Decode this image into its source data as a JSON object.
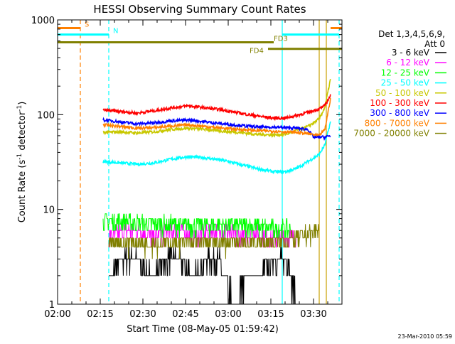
{
  "chart_data": {
    "type": "line",
    "title": "HESSI Observing Summary Count Rates",
    "xlabel": "Start Time (08-May-05 01:59:42)",
    "ylabel": "Count Rate (s",
    "ylabel_sup1": "-1",
    "ylabel_mid": " detector",
    "ylabel_sup2": "-1",
    "ylabel_end": ")",
    "yscale": "log",
    "ylim": [
      1,
      1000
    ],
    "xlim_min": [
      0,
      100
    ],
    "ytick_values": [
      1,
      10,
      100,
      1000
    ],
    "ytick_labels": [
      "1",
      "10",
      "100",
      "1000"
    ],
    "xtick_values": [
      0,
      15,
      30,
      45,
      60,
      75,
      90
    ],
    "xtick_labels": [
      "02:00",
      "02:15",
      "02:30",
      "02:45",
      "03:00",
      "03:15",
      "03:30"
    ],
    "timestamp": "23-Mar-2010 05:59",
    "legend_header": [
      "Det 1,3,4,5,6,9,",
      "Att 0"
    ],
    "legend_position": "right",
    "series": [
      {
        "name": "3 - 6 keV",
        "color": "#000000",
        "style": "noisy",
        "x": [
          18,
          24,
          28,
          33,
          38,
          43,
          48,
          53,
          57,
          62,
          66,
          71,
          76,
          81,
          84
        ],
        "y": [
          2,
          3,
          3,
          2,
          3,
          3,
          2,
          3,
          3,
          1,
          2,
          2,
          3,
          3,
          1
        ]
      },
      {
        "name": "6 - 12 keV",
        "color": "#ff00ff",
        "style": "noisy",
        "x": [
          18,
          24,
          29,
          34,
          39,
          44,
          49,
          54,
          59,
          64,
          69,
          74,
          79,
          84
        ],
        "y": [
          5,
          6,
          6,
          5,
          6,
          6,
          5,
          6,
          6,
          5,
          6,
          5,
          5,
          5
        ]
      },
      {
        "name": "12 - 25 keV",
        "color": "#00ff00",
        "style": "noisy",
        "x": [
          16,
          22,
          28,
          34,
          40,
          46,
          52,
          58,
          64,
          70,
          76,
          82
        ],
        "y": [
          7.5,
          7.5,
          7.2,
          7.0,
          7.0,
          6.8,
          6.8,
          6.8,
          6.8,
          6.6,
          6.3,
          6.2
        ]
      },
      {
        "name": "25 - 50 keV",
        "color": "#00ffff",
        "style": "line",
        "x": [
          16,
          22,
          28,
          34,
          40,
          46,
          52,
          58,
          64,
          70,
          76,
          80,
          84,
          88,
          92,
          94,
          96
        ],
        "y": [
          32,
          31,
          30,
          31,
          34,
          36,
          35,
          33,
          30,
          27,
          25,
          25,
          27,
          32,
          38,
          48,
          85
        ]
      },
      {
        "name": "50 - 100 keV",
        "color": "#c8c800",
        "style": "line",
        "x": [
          16,
          22,
          28,
          34,
          40,
          46,
          52,
          58,
          64,
          70,
          76,
          80,
          84,
          88,
          92,
          94,
          96
        ],
        "y": [
          65,
          66,
          64,
          66,
          70,
          72,
          70,
          67,
          65,
          62,
          61,
          62,
          68,
          75,
          90,
          120,
          240
        ]
      },
      {
        "name": "100 - 300 keV",
        "color": "#ff0000",
        "style": "line",
        "x": [
          16,
          22,
          28,
          34,
          40,
          46,
          52,
          58,
          64,
          70,
          76,
          80,
          84,
          88,
          92,
          94,
          96
        ],
        "y": [
          112,
          108,
          104,
          110,
          118,
          124,
          118,
          112,
          104,
          97,
          92,
          92,
          98,
          106,
          115,
          125,
          160
        ]
      },
      {
        "name": "300 - 800 keV",
        "color": "#0000ff",
        "style": "line",
        "x": [
          16,
          22,
          28,
          34,
          40,
          46,
          52,
          58,
          64,
          70,
          76,
          80,
          84,
          88,
          90,
          92,
          94,
          96
        ],
        "y": [
          88,
          84,
          80,
          82,
          86,
          88,
          84,
          80,
          77,
          74,
          74,
          73,
          72,
          70,
          58,
          58,
          58,
          60
        ]
      },
      {
        "name": "800 - 7000 keV",
        "color": "#ff8000",
        "style": "line",
        "x": [
          16,
          22,
          28,
          34,
          40,
          46,
          52,
          58,
          64,
          70,
          76,
          80,
          84,
          88,
          92,
          94,
          96
        ],
        "y": [
          78,
          75,
          72,
          73,
          76,
          78,
          75,
          72,
          70,
          68,
          67,
          66,
          65,
          63,
          60,
          70,
          150
        ]
      },
      {
        "name": "7000 - 20000 keV",
        "color": "#808000",
        "style": "noisy",
        "x": [
          18,
          24,
          30,
          36,
          42,
          48,
          54,
          60,
          66,
          72,
          78,
          84,
          88,
          92
        ],
        "y": [
          4.5,
          4.5,
          4.4,
          4.5,
          4.5,
          4.4,
          4.4,
          4.5,
          4.5,
          4.4,
          4.5,
          5.0,
          5.5,
          6.0
        ]
      }
    ],
    "state_bars": [
      {
        "label": "S",
        "color": "#ff8000",
        "y": 820,
        "segments": [
          [
            0,
            8
          ],
          [
            96,
            100
          ]
        ],
        "label_x": 9.5
      },
      {
        "label": "N",
        "color": "#00ffff",
        "y": 700,
        "segments": [
          [
            0,
            18
          ],
          [
            79,
            99
          ]
        ],
        "label_x": 19.5
      },
      {
        "label": "FD3",
        "color": "#808000",
        "y": 580,
        "segments": [
          [
            0,
            76
          ]
        ],
        "label_x": 76
      },
      {
        "label": "FD4",
        "color": "#808000",
        "y": 495,
        "segments": [
          [
            74,
            100
          ]
        ],
        "label_x": 67.5
      }
    ],
    "vertical_lines": [
      {
        "x": 8,
        "color": "#ff8000",
        "dash": true
      },
      {
        "x": 18,
        "color": "#00ffff",
        "dash": true
      },
      {
        "x": 79,
        "color": "#00ffff",
        "dash": false
      },
      {
        "x": 92,
        "color": "#c8a000",
        "dash": false
      },
      {
        "x": 94.5,
        "color": "#c8a000",
        "dash": false
      },
      {
        "x": 99,
        "color": "#00ffff",
        "dash": true
      }
    ]
  }
}
